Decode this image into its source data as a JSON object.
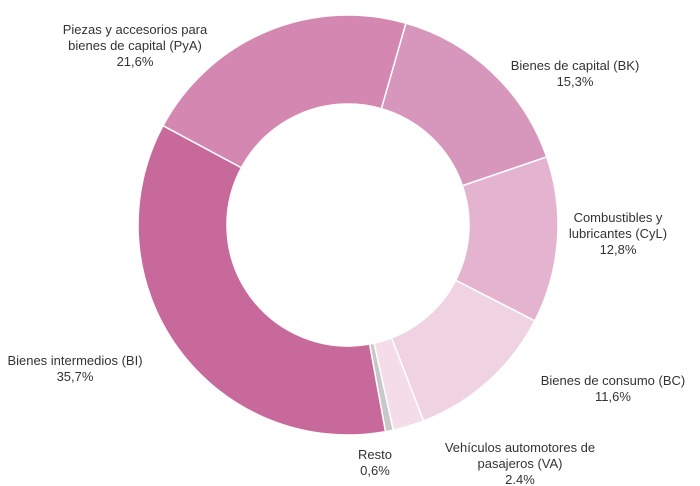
{
  "chart_data": {
    "type": "donut",
    "categories": [
      "Bienes de capital (BK)",
      "Combustibles y\nlubricantes (CyL)",
      "Bienes de consumo (BC)",
      "Vehículos automotores de\npasajeros (VA)",
      "Resto",
      "Bienes intermedios (BI)",
      "Piezas y accesorios para\nbienes de capital (PyA)"
    ],
    "values": [
      15.3,
      12.8,
      11.6,
      2.4,
      0.6,
      35.7,
      21.6
    ],
    "value_labels": [
      "15,3%",
      "12,8%",
      "11,6%",
      "2.4%",
      "0,6%",
      "35,7%",
      "21,6%"
    ],
    "colors": [
      "#d796bc",
      "#e4b3cf",
      "#f0d3e3",
      "#f4dde9",
      "#c8c8c8",
      "#c8699c",
      "#d488b1"
    ]
  }
}
